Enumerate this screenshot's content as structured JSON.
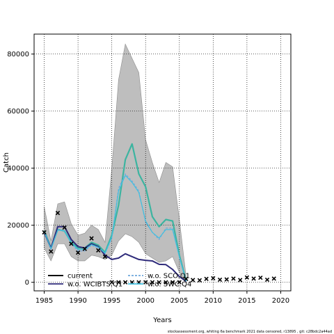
{
  "chart_data": {
    "type": "line",
    "xlabel": "Years",
    "ylabel": "Catch",
    "xlim": [
      1983.5,
      2021.5
    ],
    "ylim": [
      -3000,
      87000
    ],
    "xticks": [
      1985,
      1990,
      1995,
      2000,
      2005,
      2010,
      2015,
      2020
    ],
    "yticks": [
      0,
      20000,
      40000,
      60000,
      80000
    ],
    "grid": "dotted",
    "legend_placement": "bottom-left",
    "footnote": "stockassessment.org, whiting 6a benchmark 2021 data censored, r13895 , git: c28bdc2a44ad",
    "band": {
      "x": [
        1985,
        1986,
        1987,
        1988,
        1989,
        1990,
        1991,
        1992,
        1993,
        1994,
        1995,
        1996,
        1997,
        1998,
        1999,
        2000,
        2001,
        2002,
        2003,
        2004,
        2005,
        2006
      ],
      "upper": [
        26500,
        14500,
        27500,
        28200,
        20500,
        16500,
        17200,
        20000,
        18500,
        14000,
        40000,
        71000,
        83500,
        78500,
        73500,
        50000,
        42000,
        35000,
        42000,
        40500,
        22000,
        2000
      ],
      "lower": [
        12000,
        7500,
        13500,
        13500,
        9000,
        7500,
        7500,
        9500,
        9000,
        8000,
        9500,
        14500,
        17000,
        16000,
        14000,
        10000,
        8500,
        7000,
        7500,
        9000,
        3500,
        200
      ]
    },
    "series": [
      {
        "name": "current",
        "style": "solid",
        "color": "#3cb4a0",
        "x": [
          1985,
          1986,
          1987,
          1988,
          1989,
          1990,
          1991,
          1992,
          1993,
          1994,
          1995,
          1996,
          1997,
          1998,
          1999,
          2000,
          2001,
          2002,
          2003,
          2004,
          2005,
          2006
        ],
        "y": [
          18000,
          12000,
          18500,
          18000,
          14000,
          12000,
          12000,
          14000,
          13000,
          10500,
          16500,
          27000,
          43000,
          48500,
          38000,
          33500,
          23000,
          19500,
          22000,
          21500,
          9500,
          500
        ]
      },
      {
        "name": "w.o. SCO.Q1",
        "style": "dashed",
        "color": "#6fa8dc",
        "x": [
          1985,
          1986,
          1987,
          1988,
          1989,
          1990,
          1991,
          1992,
          1993,
          1994,
          1995,
          1996,
          1997,
          1998,
          1999,
          2000,
          2001,
          2002,
          2003,
          2004,
          2005,
          2006
        ],
        "y": [
          17500,
          11500,
          18500,
          18000,
          13500,
          11000,
          11000,
          13000,
          12000,
          10000,
          15500,
          33000,
          38000,
          35500,
          32000,
          21000,
          17500,
          15000,
          19000,
          19000,
          9000,
          400
        ]
      },
      {
        "name": "w.o. WCIBTS.Q1",
        "style": "solid",
        "color": "#2e2a7a",
        "x": [
          1985,
          1986,
          1987,
          1988,
          1989,
          1990,
          1991,
          1992,
          1993,
          1994,
          1995,
          1996,
          1997,
          1998,
          1999,
          2000,
          2001,
          2002,
          2003,
          2004,
          2005,
          2006
        ],
        "y": [
          17500,
          12000,
          19500,
          19500,
          15000,
          12500,
          12000,
          13500,
          12500,
          9500,
          8000,
          8500,
          10000,
          9000,
          8000,
          7700,
          7500,
          6300,
          6200,
          4500,
          2000,
          300
        ]
      },
      {
        "name": "w.o. SWC.Q4",
        "style": "solid",
        "color": "#40c0e0",
        "x": [
          1985,
          1986,
          1987,
          1988,
          1989,
          1990,
          1991,
          1992,
          1993,
          1994,
          1995,
          1996,
          1997,
          1998,
          1999,
          2000,
          2001,
          2002,
          2003,
          2004,
          2005,
          2006
        ],
        "y": [
          17800,
          11800,
          18300,
          18000,
          13800,
          11500,
          11500,
          13200,
          12300,
          10200,
          15800,
          32000,
          37500,
          35000,
          31500,
          21500,
          17500,
          15500,
          18500,
          18500,
          8800,
          400
        ]
      }
    ],
    "observed": {
      "x": [
        1985,
        1986,
        1987,
        1988,
        1989,
        1990,
        1991,
        1992,
        1993,
        1994,
        1995,
        1996,
        1997,
        1998,
        1999,
        2000,
        2001,
        2002,
        2003,
        2004,
        2005,
        2006,
        2007,
        2008,
        2009,
        2010,
        2011,
        2012,
        2013,
        2014,
        2015,
        2016,
        2017,
        2018,
        2019
      ],
      "y": [
        17500,
        10800,
        24300,
        19200,
        13500,
        10400,
        11700,
        15400,
        11200,
        9000,
        0,
        0,
        0,
        0,
        0,
        0,
        0,
        0,
        0,
        0,
        0,
        1200,
        800,
        700,
        1200,
        1400,
        900,
        1000,
        1300,
        800,
        1700,
        1300,
        1600,
        900,
        1300
      ]
    }
  }
}
